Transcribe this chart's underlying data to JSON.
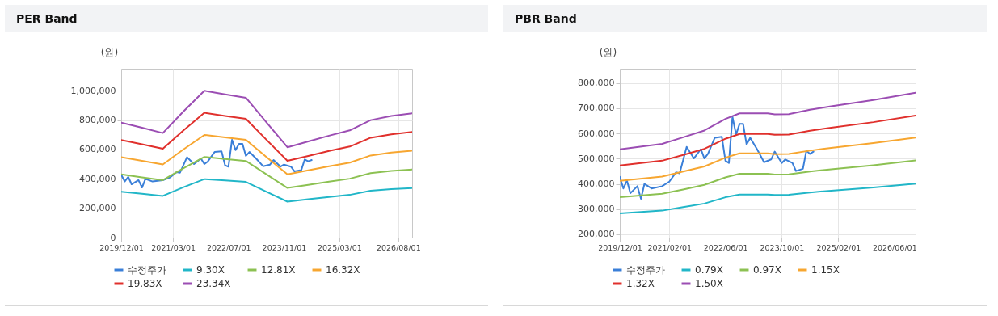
{
  "chart_data": [
    {
      "type": "line",
      "title": "PER Band",
      "ylabel": "(원)",
      "grid": true,
      "legend": "bottom",
      "xlim": [
        "2019-12-01",
        "2026-12-01"
      ],
      "xticks": [
        {
          "value": "2019-12-01",
          "label": "2019/12/01"
        },
        {
          "value": "2021-03-01",
          "label": "2021/03/01"
        },
        {
          "value": "2022-07-01",
          "label": "2022/07/01"
        },
        {
          "value": "2023-11-01",
          "label": "2023/11/01"
        },
        {
          "value": "2025-03-01",
          "label": "2025/03/01"
        },
        {
          "value": "2026-08-01",
          "label": "2026/08/01"
        }
      ],
      "ylim": [
        0,
        1150000
      ],
      "yticks": [
        0,
        {
          "value": 200000,
          "label": "200,000"
        },
        {
          "value": 400000,
          "label": "400,000"
        },
        {
          "value": 600000,
          "label": "600,000"
        },
        {
          "value": 800000,
          "label": "800,000"
        },
        {
          "value": 1000000,
          "label": "1,000,000"
        }
      ],
      "series": [
        {
          "name": "수정주가",
          "color": "#3a7fd8",
          "x": [
            "2019-12",
            "2020-01",
            "2020-02",
            "2020-03",
            "2020-05",
            "2020-06",
            "2020-07",
            "2020-09",
            "2020-12",
            "2021-02",
            "2021-04",
            "2021-05",
            "2021-07",
            "2021-09",
            "2021-11",
            "2021-12",
            "2022-01",
            "2022-03",
            "2022-05",
            "2022-06",
            "2022-07",
            "2022-08",
            "2022-09",
            "2022-10",
            "2022-11",
            "2022-12",
            "2023-01",
            "2023-03",
            "2023-05",
            "2023-07",
            "2023-08",
            "2023-10",
            "2023-11",
            "2024-01",
            "2024-02",
            "2024-04",
            "2024-05",
            "2024-06",
            "2024-07"
          ],
          "values": [
            428000,
            382000,
            413000,
            363000,
            391000,
            341000,
            400000,
            382000,
            391000,
            409000,
            446000,
            442000,
            547000,
            501000,
            538000,
            501000,
            519000,
            583000,
            587000,
            492000,
            483000,
            666000,
            596000,
            638000,
            638000,
            556000,
            583000,
            538000,
            486000,
            497000,
            528000,
            483000,
            497000,
            483000,
            451000,
            460000,
            532000,
            519000,
            528000
          ]
        },
        {
          "name": "9.30X",
          "color": "#21b6c8",
          "x": [
            "2019-12",
            "2020-06",
            "2020-12",
            "2021-06",
            "2021-12",
            "2022-06",
            "2022-12",
            "2023-06",
            "2023-12",
            "2024-06",
            "2024-12",
            "2025-06",
            "2025-12",
            "2026-06",
            "2026-12"
          ],
          "values": [
            312000,
            298000,
            284000,
            343000,
            398000,
            389000,
            379000,
            312000,
            245000,
            261000,
            277000,
            291000,
            319000,
            330000,
            337000
          ]
        },
        {
          "name": "12.81X",
          "color": "#8cc152",
          "x": [
            "2019-12",
            "2020-06",
            "2020-12",
            "2021-06",
            "2021-12",
            "2022-06",
            "2022-12",
            "2023-06",
            "2023-12",
            "2024-06",
            "2024-12",
            "2025-06",
            "2025-12",
            "2026-06",
            "2026-12"
          ],
          "values": [
            430000,
            410000,
            391000,
            472000,
            549000,
            535000,
            522000,
            430000,
            338000,
            359000,
            381000,
            401000,
            439000,
            454000,
            464000
          ]
        },
        {
          "name": "16.32X",
          "color": "#f7a630",
          "x": [
            "2019-12",
            "2020-06",
            "2020-12",
            "2021-06",
            "2021-12",
            "2022-06",
            "2022-12",
            "2023-06",
            "2023-12",
            "2024-06",
            "2024-12",
            "2025-06",
            "2025-12",
            "2026-06",
            "2026-12"
          ],
          "values": [
            547000,
            523000,
            498000,
            601000,
            699000,
            682000,
            666000,
            547000,
            430000,
            458000,
            485000,
            510000,
            559000,
            579000,
            592000
          ]
        },
        {
          "name": "19.83X",
          "color": "#e0302c",
          "x": [
            "2019-12",
            "2020-06",
            "2020-12",
            "2021-06",
            "2021-12",
            "2022-06",
            "2022-12",
            "2023-06",
            "2023-12",
            "2024-06",
            "2024-12",
            "2025-06",
            "2025-12",
            "2026-06",
            "2026-12"
          ],
          "values": [
            665000,
            635000,
            605000,
            731000,
            850000,
            828000,
            809000,
            665000,
            523000,
            556000,
            590000,
            620000,
            680000,
            703000,
            719000
          ]
        },
        {
          "name": "23.34X",
          "color": "#9b4db3",
          "x": [
            "2019-12",
            "2020-06",
            "2020-12",
            "2021-06",
            "2021-12",
            "2022-06",
            "2022-12",
            "2023-06",
            "2023-12",
            "2024-06",
            "2024-12",
            "2025-06",
            "2025-12",
            "2026-06",
            "2026-12"
          ],
          "values": [
            783000,
            748000,
            712000,
            860000,
            1000000,
            975000,
            952000,
            783000,
            615000,
            655000,
            694000,
            730000,
            800000,
            828000,
            846000
          ]
        }
      ]
    },
    {
      "type": "line",
      "title": "PBR Band",
      "ylabel": "(원)",
      "grid": true,
      "legend": "bottom",
      "xlim": [
        "2019-12-01",
        "2026-12-01"
      ],
      "xticks": [
        {
          "value": "2019-12-01",
          "label": "2019/12/01"
        },
        {
          "value": "2021-02-01",
          "label": "2021/02/01"
        },
        {
          "value": "2022-06-01",
          "label": "2022/06/01"
        },
        {
          "value": "2023-10-01",
          "label": "2023/10/01"
        },
        {
          "value": "2025-02-01",
          "label": "2025/02/01"
        },
        {
          "value": "2026-06-01",
          "label": "2026/06/01"
        }
      ],
      "ylim": [
        187000,
        857000
      ],
      "yticks": [
        {
          "value": 200000,
          "label": "200,000"
        },
        {
          "value": 300000,
          "label": "300,000"
        },
        {
          "value": 400000,
          "label": "400,000"
        },
        {
          "value": 500000,
          "label": "500,000"
        },
        {
          "value": 600000,
          "label": "600,000"
        },
        {
          "value": 700000,
          "label": "700,000"
        },
        {
          "value": 800000,
          "label": "800,000"
        }
      ],
      "series": [
        {
          "name": "수정주가",
          "color": "#3a7fd8",
          "x": [
            "2019-12",
            "2020-01",
            "2020-02",
            "2020-03",
            "2020-05",
            "2020-06",
            "2020-07",
            "2020-09",
            "2020-12",
            "2021-02",
            "2021-04",
            "2021-05",
            "2021-07",
            "2021-09",
            "2021-11",
            "2021-12",
            "2022-01",
            "2022-03",
            "2022-05",
            "2022-06",
            "2022-07",
            "2022-08",
            "2022-09",
            "2022-10",
            "2022-11",
            "2022-12",
            "2023-01",
            "2023-03",
            "2023-05",
            "2023-07",
            "2023-08",
            "2023-10",
            "2023-11",
            "2024-01",
            "2024-02",
            "2024-04",
            "2024-05",
            "2024-06",
            "2024-07"
          ],
          "values": [
            428000,
            382000,
            413000,
            363000,
            391000,
            341000,
            400000,
            382000,
            391000,
            409000,
            446000,
            442000,
            547000,
            501000,
            538000,
            501000,
            519000,
            583000,
            587000,
            492000,
            483000,
            666000,
            596000,
            638000,
            638000,
            556000,
            583000,
            538000,
            486000,
            497000,
            528000,
            483000,
            497000,
            483000,
            451000,
            460000,
            532000,
            519000,
            528000
          ]
        },
        {
          "name": "0.79X",
          "color": "#21b6c8",
          "x": [
            "2019-12",
            "2020-12",
            "2021-06",
            "2021-12",
            "2022-06",
            "2022-10",
            "2023-06",
            "2023-08",
            "2023-12",
            "2024-06",
            "2024-12",
            "2025-12",
            "2026-12"
          ],
          "values": [
            283000,
            294000,
            308000,
            322000,
            347000,
            358000,
            358000,
            356000,
            357000,
            366000,
            373000,
            386000,
            401000
          ]
        },
        {
          "name": "0.97X",
          "color": "#8cc152",
          "x": [
            "2019-12",
            "2020-12",
            "2021-06",
            "2021-12",
            "2022-06",
            "2022-10",
            "2023-06",
            "2023-08",
            "2023-12",
            "2024-06",
            "2024-12",
            "2025-12",
            "2026-12"
          ],
          "values": [
            347000,
            361000,
            378000,
            396000,
            426000,
            440000,
            440000,
            437000,
            438000,
            449000,
            458000,
            474000,
            493000
          ]
        },
        {
          "name": "1.15X",
          "color": "#f7a630",
          "x": [
            "2019-12",
            "2020-12",
            "2021-06",
            "2021-12",
            "2022-06",
            "2022-10",
            "2023-06",
            "2023-08",
            "2023-12",
            "2024-06",
            "2024-12",
            "2025-12",
            "2026-12"
          ],
          "values": [
            412000,
            429000,
            449000,
            469000,
            504000,
            521000,
            521000,
            518000,
            519000,
            532000,
            543000,
            562000,
            584000
          ]
        },
        {
          "name": "1.32X",
          "color": "#e0302c",
          "x": [
            "2019-12",
            "2020-12",
            "2021-06",
            "2021-12",
            "2022-06",
            "2022-10",
            "2023-06",
            "2023-08",
            "2023-12",
            "2024-06",
            "2024-12",
            "2025-12",
            "2026-12"
          ],
          "values": [
            473000,
            492000,
            515000,
            539000,
            579000,
            598000,
            598000,
            595000,
            596000,
            611000,
            623000,
            645000,
            671000
          ]
        },
        {
          "name": "1.50X",
          "color": "#9b4db3",
          "x": [
            "2019-12",
            "2020-12",
            "2021-06",
            "2021-12",
            "2022-06",
            "2022-10",
            "2023-06",
            "2023-08",
            "2023-12",
            "2024-06",
            "2024-12",
            "2025-12",
            "2026-12"
          ],
          "values": [
            537000,
            559000,
            585000,
            612000,
            658000,
            680000,
            680000,
            676000,
            677000,
            694000,
            708000,
            733000,
            762000
          ]
        }
      ]
    }
  ]
}
